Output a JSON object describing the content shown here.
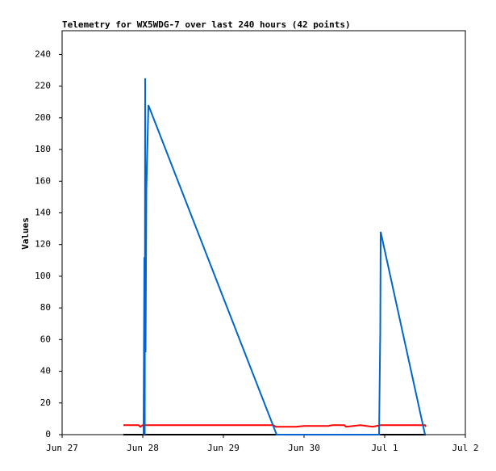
{
  "chart_data": {
    "type": "line",
    "title": "Telemetry for WX5WDG-7 over last 240 hours (42 points)",
    "y_label": "Values",
    "xlim": [
      0,
      5
    ],
    "ylim": [
      0,
      255
    ],
    "xticks": [
      {
        "value": 0,
        "label": "Jun 27"
      },
      {
        "value": 1,
        "label": "Jun 28"
      },
      {
        "value": 2,
        "label": "Jun 29"
      },
      {
        "value": 3,
        "label": "Jun 30"
      },
      {
        "value": 4,
        "label": "Jul 1"
      },
      {
        "value": 5,
        "label": "Jul 2"
      }
    ],
    "yticks": [
      0,
      20,
      40,
      60,
      80,
      100,
      120,
      140,
      160,
      180,
      200,
      220,
      240
    ],
    "series": [
      {
        "color": "#ff0000",
        "x": [
          0.76,
          0.95,
          0.97,
          1.0,
          2.62,
          2.65,
          2.9,
          3.0,
          3.3,
          3.35,
          3.5,
          3.52,
          3.7,
          3.85,
          3.95,
          4.5,
          4.51
        ],
        "values": [
          6,
          6,
          5,
          6,
          6,
          5,
          5,
          5.5,
          5.5,
          6,
          6,
          5,
          6,
          5,
          6,
          6,
          5
        ]
      },
      {
        "color": "#000000",
        "x": [
          0.76,
          4.51
        ],
        "values": [
          0,
          0
        ]
      },
      {
        "color": "#0066cc",
        "x": [
          1.01,
          1.02,
          1.025,
          1.03,
          1.035,
          1.045,
          1.07,
          2.66,
          3.93,
          3.945,
          3.95,
          4.5
        ],
        "values": [
          0,
          112,
          0,
          225,
          52,
          155,
          208,
          0,
          0,
          65,
          128,
          0
        ]
      }
    ]
  }
}
